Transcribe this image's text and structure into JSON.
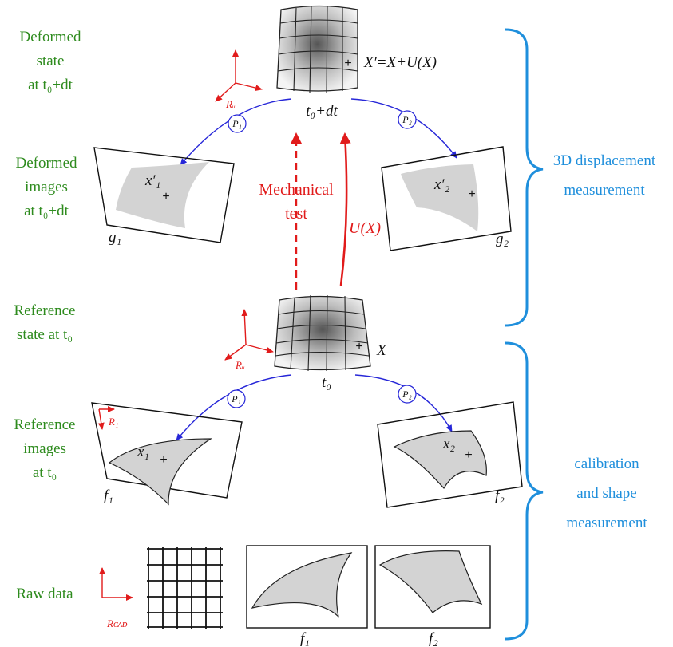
{
  "left_labels": {
    "deformed_state": [
      "Deformed",
      "state",
      "at t₀+dt"
    ],
    "deformed_images": [
      "Deformed",
      "images",
      "at t₀+dt"
    ],
    "reference_state": [
      "Reference",
      "state at t₀"
    ],
    "reference_images": [
      "Reference",
      "images",
      "at t₀"
    ],
    "raw_data": "Raw data"
  },
  "right_labels": {
    "displacement": [
      "3D displacement",
      "measurement"
    ],
    "calibration": [
      "calibration",
      "and shape",
      "measurement"
    ]
  },
  "center_labels": {
    "mechanical_test": [
      "Mechanical",
      "test"
    ],
    "u_of_x": "U(X)"
  },
  "math_labels": {
    "deformed_point": "X′=X+U(X)",
    "reference_point": "X",
    "time_deformed": "t₀+dt",
    "time_reference": "t₀",
    "x1_prime": "x′₁",
    "x2_prime": "x′₂",
    "x1": "x₁",
    "x2": "x₂",
    "g1": "g₁",
    "g2": "g₂",
    "f1": "f₁",
    "f2": "f₂",
    "f1_raw": "f₁",
    "f2_raw": "f₂",
    "p1": "P₁",
    "p2": "P₂"
  },
  "frame_labels": {
    "rw_top": "Rᵤ",
    "rw_bottom": "Rᵤ",
    "r1": "R₁",
    "rcad": "Rᴄᴀᴅ"
  },
  "colors": {
    "green": "#2e8b1e",
    "blue_brace": "#1f8fdc",
    "red": "#e11b1b",
    "arc_blue": "#2727d8"
  }
}
